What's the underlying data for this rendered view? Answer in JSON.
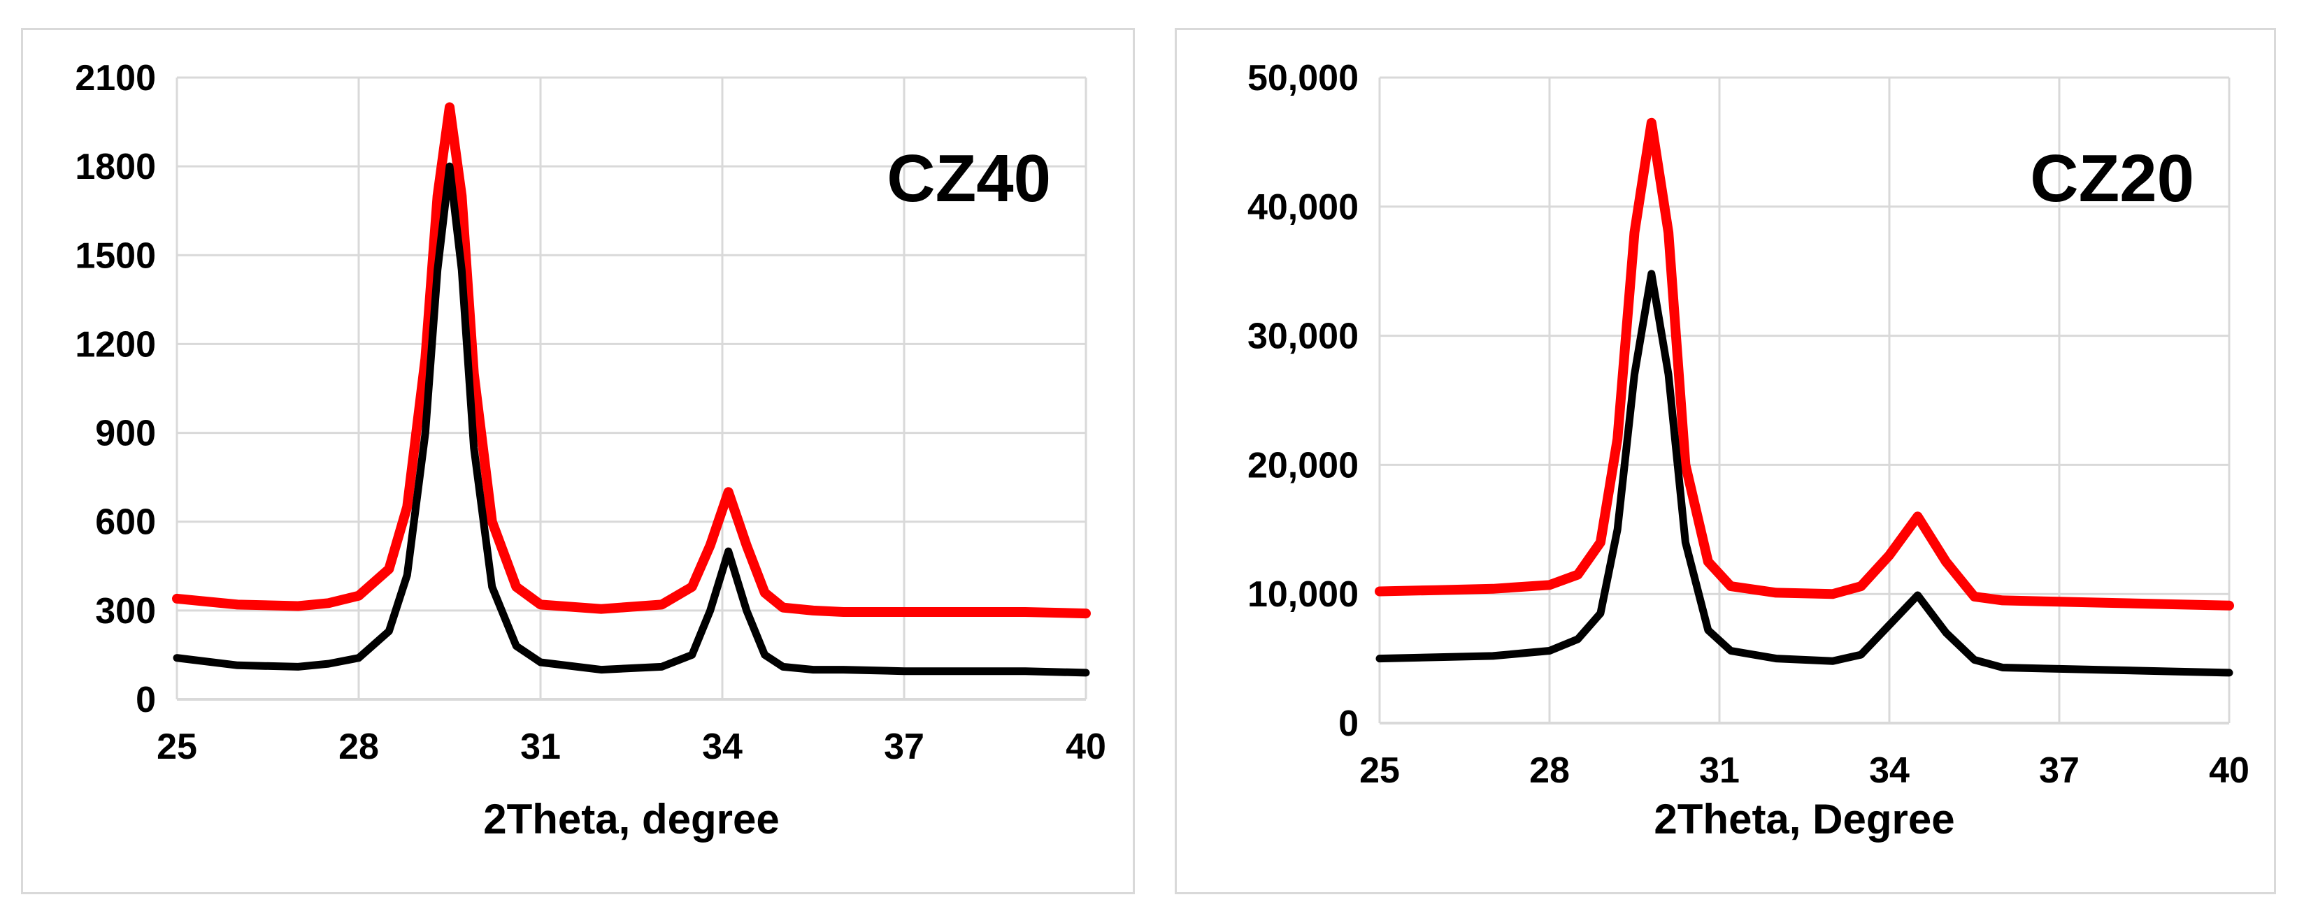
{
  "colors": {
    "red_series": "#ff0000",
    "black_series": "#000000",
    "grid": "#d9d9d9",
    "border": "#d9d9d9"
  },
  "chart_data": [
    {
      "type": "line",
      "label": "CZ40",
      "xlabel": "2Theta, degree",
      "ylabel": "",
      "xlim": [
        25,
        40
      ],
      "ylim": [
        0,
        2100
      ],
      "xticks": [
        25,
        28,
        31,
        34,
        37,
        40
      ],
      "yticks": [
        0,
        300,
        600,
        900,
        1200,
        1500,
        1800,
        2100
      ],
      "ytick_labels": [
        "0",
        "300",
        "600",
        "900",
        "1200",
        "1500",
        "1800",
        "2100"
      ],
      "grid": true,
      "series": [
        {
          "color": "#ff0000",
          "x": [
            25,
            26,
            27,
            27.5,
            28,
            28.5,
            28.8,
            29.1,
            29.3,
            29.5,
            29.7,
            29.9,
            30.2,
            30.6,
            31,
            32,
            33,
            33.5,
            33.8,
            34.1,
            34.4,
            34.7,
            35,
            35.5,
            36,
            37,
            38,
            39,
            40
          ],
          "y": [
            340,
            320,
            315,
            325,
            350,
            440,
            650,
            1150,
            1700,
            2000,
            1700,
            1100,
            600,
            380,
            320,
            305,
            320,
            380,
            520,
            700,
            520,
            360,
            310,
            300,
            295,
            295,
            295,
            295,
            290
          ]
        },
        {
          "color": "#000000",
          "x": [
            25,
            26,
            27,
            27.5,
            28,
            28.5,
            28.8,
            29.1,
            29.3,
            29.5,
            29.7,
            29.9,
            30.2,
            30.6,
            31,
            32,
            33,
            33.5,
            33.8,
            34.1,
            34.4,
            34.7,
            35,
            35.5,
            36,
            37,
            38,
            39,
            40
          ],
          "y": [
            140,
            115,
            110,
            120,
            140,
            230,
            420,
            900,
            1450,
            1800,
            1450,
            850,
            380,
            180,
            125,
            100,
            110,
            150,
            300,
            500,
            300,
            150,
            110,
            100,
            100,
            95,
            95,
            95,
            90
          ]
        }
      ]
    },
    {
      "type": "line",
      "label": "CZ20",
      "xlabel": "2Theta, Degree",
      "ylabel": "",
      "xlim": [
        25,
        40
      ],
      "ylim": [
        0,
        50000
      ],
      "xticks": [
        25,
        28,
        31,
        34,
        37,
        40
      ],
      "yticks": [
        0,
        10000,
        20000,
        30000,
        40000,
        50000
      ],
      "ytick_labels": [
        "0",
        "10,000",
        "20,000",
        "30,000",
        "40,000",
        "50,000"
      ],
      "grid": true,
      "series": [
        {
          "color": "#ff0000",
          "x": [
            25,
            26,
            27,
            28,
            28.5,
            28.9,
            29.2,
            29.5,
            29.8,
            30.1,
            30.4,
            30.8,
            31.2,
            32,
            33,
            33.5,
            34,
            34.5,
            35,
            35.5,
            36,
            37,
            38,
            39,
            40
          ],
          "y": [
            10200,
            10300,
            10400,
            10700,
            11500,
            14000,
            22000,
            38000,
            46500,
            38000,
            20000,
            12500,
            10600,
            10100,
            10000,
            10600,
            13000,
            16000,
            12500,
            9800,
            9500,
            9400,
            9300,
            9200,
            9100
          ]
        },
        {
          "color": "#000000",
          "x": [
            25,
            26,
            27,
            28,
            28.5,
            28.9,
            29.2,
            29.5,
            29.8,
            30.1,
            30.4,
            30.8,
            31.2,
            32,
            33,
            33.5,
            34,
            34.5,
            35,
            35.5,
            36,
            37,
            38,
            39,
            40
          ],
          "y": [
            5000,
            5100,
            5200,
            5600,
            6500,
            8500,
            15000,
            27000,
            34800,
            27000,
            14000,
            7200,
            5600,
            5000,
            4800,
            5300,
            7600,
            9900,
            7000,
            4900,
            4300,
            4200,
            4100,
            4000,
            3900
          ]
        }
      ]
    }
  ]
}
